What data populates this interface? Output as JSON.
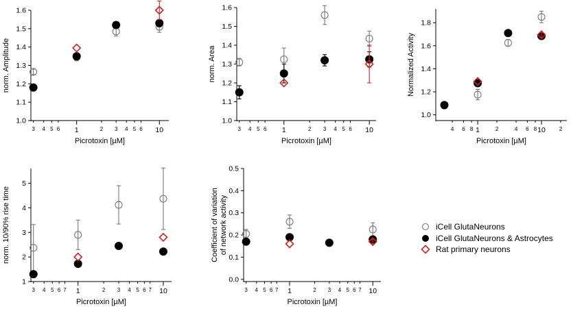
{
  "colors": {
    "icell": "#777777",
    "astro": "#000000",
    "rat": "#d42020"
  },
  "legend": [
    {
      "key": "icell",
      "label": "iCell GlutaNeurons",
      "marker": "circle-open"
    },
    {
      "key": "astro",
      "label": "iCell GlutaNeurons  & Astrocytes",
      "marker": "circle-filled"
    },
    {
      "key": "rat",
      "label": "Rat primary neurons",
      "marker": "diamond-open"
    }
  ],
  "chart_data": [
    {
      "type": "scatter",
      "xlabel": "Picrotoxin [µM]",
      "ylabel": "norm. Amplitude",
      "xscale": "log",
      "xlim": [
        0.28,
        13
      ],
      "ylim": [
        1.0,
        1.6
      ],
      "yticks": [
        "1.0",
        "1.1",
        "1.2",
        "1.3",
        "1.4",
        "1.5",
        "1.6"
      ],
      "xticks_major": [
        "1",
        "10"
      ],
      "xticks_minor": [
        "3",
        "4",
        "5",
        "6",
        "2",
        "3",
        "4",
        "5",
        "6"
      ],
      "series": [
        {
          "name": "iCell GlutaNeurons",
          "x": [
            0.3,
            1,
            3,
            10
          ],
          "y": [
            1.265,
            1.345,
            1.485,
            1.51
          ],
          "err": [
            0.015,
            0.02,
            0.025,
            0.03
          ]
        },
        {
          "name": "iCell GlutaNeurons  & Astrocytes",
          "x": [
            0.3,
            1,
            3,
            10
          ],
          "y": [
            1.18,
            1.35,
            1.52,
            1.53
          ],
          "err": [
            0,
            0.015,
            0.01,
            0.02
          ]
        },
        {
          "name": "Rat primary neurons",
          "x": [
            1,
            10
          ],
          "y": [
            1.395,
            1.6
          ],
          "err": [
            0,
            0.05
          ]
        }
      ]
    },
    {
      "type": "scatter",
      "xlabel": "Picrotoxin [µM]",
      "ylabel": "norm. Area",
      "xscale": "log",
      "xlim": [
        0.28,
        12
      ],
      "ylim": [
        1.0,
        1.6
      ],
      "yticks": [
        "1.0",
        "1.1",
        "1.2",
        "1.3",
        "1.4",
        "1.5",
        "1.6"
      ],
      "xticks_major": [
        "1",
        "10"
      ],
      "xticks_minor": [
        "3",
        "4",
        "5",
        "6",
        "2",
        "3",
        "4",
        "5",
        "6"
      ],
      "series": [
        {
          "name": "iCell GlutaNeurons",
          "x": [
            0.3,
            1,
            3,
            10
          ],
          "y": [
            1.31,
            1.325,
            1.56,
            1.435
          ],
          "err": [
            0.02,
            0.06,
            0.05,
            0.04
          ]
        },
        {
          "name": "iCell GlutaNeurons  & Astrocytes",
          "x": [
            0.3,
            1,
            3,
            10
          ],
          "y": [
            1.15,
            1.25,
            1.32,
            1.325
          ],
          "err": [
            0.035,
            0.05,
            0.03,
            0.04
          ]
        },
        {
          "name": "Rat primary neurons",
          "x": [
            1,
            10
          ],
          "y": [
            1.2,
            1.3
          ],
          "err": [
            0,
            0.1
          ]
        }
      ]
    },
    {
      "type": "scatter",
      "xlabel": "Picrotoxin [µM]",
      "ylabel": "Normalized Activity",
      "xscale": "log",
      "xlim": [
        0.22,
        25
      ],
      "ylim": [
        0.95,
        1.92
      ],
      "yticks": [
        "1.0",
        "1.2",
        "1.4",
        "1.6",
        "1.8"
      ],
      "xticks_major": [
        "1",
        "10"
      ],
      "xticks_minor": [
        "4",
        "6",
        "8",
        "2",
        "4",
        "6",
        "8",
        "2"
      ],
      "series": [
        {
          "name": "iCell GlutaNeurons",
          "x": [
            0.3,
            1,
            3,
            10
          ],
          "y": [
            1.08,
            1.175,
            1.625,
            1.85
          ],
          "err": [
            0.015,
            0.045,
            0.03,
            0.05
          ]
        },
        {
          "name": "iCell GlutaNeurons  & Astrocytes",
          "x": [
            0.3,
            1,
            3,
            10
          ],
          "y": [
            1.085,
            1.275,
            1.71,
            1.685
          ],
          "err": [
            0,
            0.02,
            0.02,
            0.02
          ]
        },
        {
          "name": "Rat primary neurons",
          "x": [
            1,
            10
          ],
          "y": [
            1.29,
            1.695
          ],
          "err": [
            0,
            0.02
          ]
        }
      ]
    },
    {
      "type": "scatter",
      "xlabel": "Picrotoxin [µM]",
      "ylabel": "norm. 10/90% rise time",
      "xscale": "log",
      "xlim": [
        0.28,
        12.5
      ],
      "ylim": [
        1.0,
        5.6
      ],
      "yticks": [
        "1",
        "2",
        "3",
        "4",
        "5"
      ],
      "xticks_major": [
        "1",
        "10"
      ],
      "xticks_minor": [
        "3",
        "4",
        "5",
        "6",
        "7",
        "2",
        "3",
        "4",
        "5",
        "6",
        "7"
      ],
      "series": [
        {
          "name": "iCell GlutaNeurons",
          "x": [
            0.3,
            1,
            3,
            10
          ],
          "y": [
            2.37,
            2.9,
            4.12,
            4.37
          ],
          "err": [
            0.95,
            0.6,
            0.78,
            1.25
          ]
        },
        {
          "name": "iCell GlutaNeurons  & Astrocytes",
          "x": [
            0.3,
            1,
            3,
            10
          ],
          "y": [
            1.3,
            1.72,
            2.45,
            2.22
          ],
          "err": [
            0,
            0,
            0,
            0
          ]
        },
        {
          "name": "Rat primary neurons",
          "x": [
            1,
            10
          ],
          "y": [
            2.0,
            2.8
          ],
          "err": [
            0,
            0
          ]
        }
      ]
    },
    {
      "type": "scatter",
      "xlabel": "Picrotoxin [µM]",
      "ylabel": "Coefficient of variation\nof network activity",
      "xscale": "log",
      "xlim": [
        0.28,
        12.5
      ],
      "ylim": [
        -0.01,
        0.5
      ],
      "yticks": [
        "0.0",
        "0.1",
        "0.2",
        "0.3",
        "0.4",
        "0.5"
      ],
      "xticks_major": [
        "1",
        "10"
      ],
      "xticks_minor": [
        "3",
        "4",
        "5",
        "6",
        "7",
        "2",
        "3",
        "4",
        "5",
        "6",
        "7"
      ],
      "series": [
        {
          "name": "iCell GlutaNeurons",
          "x": [
            0.3,
            1,
            3,
            10
          ],
          "y": [
            0.205,
            0.26,
            0.165,
            0.225
          ],
          "err": [
            0.02,
            0.03,
            0.005,
            0.03
          ]
        },
        {
          "name": "iCell GlutaNeurons  & Astrocytes",
          "x": [
            0.3,
            1,
            3,
            10
          ],
          "y": [
            0.17,
            0.19,
            0.165,
            0.18
          ],
          "err": [
            0,
            0.01,
            0.005,
            0.01
          ]
        },
        {
          "name": "Rat primary neurons",
          "x": [
            1,
            10
          ],
          "y": [
            0.16,
            0.17
          ],
          "err": [
            0,
            0.01
          ]
        }
      ]
    }
  ]
}
